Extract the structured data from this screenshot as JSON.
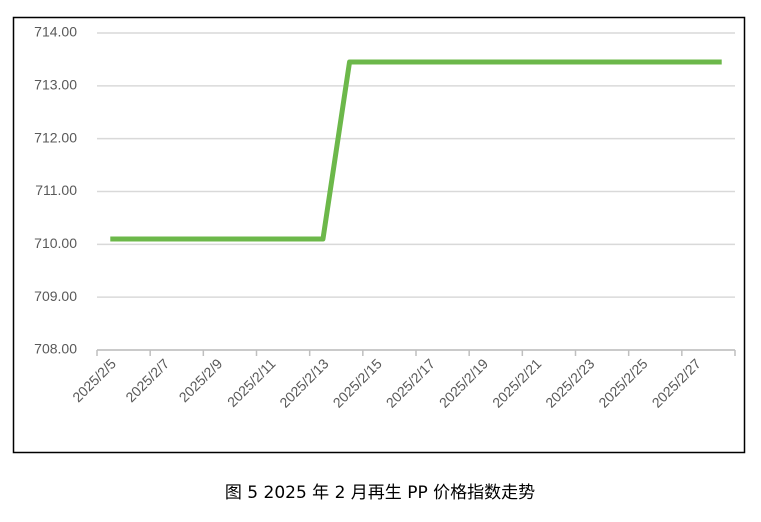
{
  "chart_data": {
    "type": "line",
    "caption": "图 5 2025 年 2 月再生 PP 价格指数走势",
    "categories": [
      "2025/2/5",
      null,
      "2025/2/7",
      null,
      "2025/2/9",
      null,
      "2025/2/11",
      null,
      "2025/2/13",
      null,
      "2025/2/15",
      null,
      "2025/2/17",
      null,
      "2025/2/19",
      null,
      "2025/2/21",
      null,
      "2025/2/23",
      null,
      "2025/2/25",
      null,
      "2025/2/27",
      null
    ],
    "series": [
      {
        "color": "#6cb84a",
        "values": [
          710.1,
          710.1,
          710.1,
          710.1,
          710.1,
          710.1,
          710.1,
          710.1,
          710.1,
          713.45,
          713.45,
          713.45,
          713.45,
          713.45,
          713.45,
          713.45,
          713.45,
          713.45,
          713.45,
          713.45,
          713.45,
          713.45,
          713.45,
          713.45
        ]
      }
    ],
    "ylim": [
      708,
      714
    ],
    "yticks": [
      {
        "value": 708,
        "label": "708.00"
      },
      {
        "value": 709,
        "label": "709.00"
      },
      {
        "value": 710,
        "label": "710.00"
      },
      {
        "value": 711,
        "label": "711.00"
      },
      {
        "value": 712,
        "label": "712.00"
      },
      {
        "value": 713,
        "label": "713.00"
      },
      {
        "value": 714,
        "label": "714.00"
      }
    ],
    "grid": true
  }
}
